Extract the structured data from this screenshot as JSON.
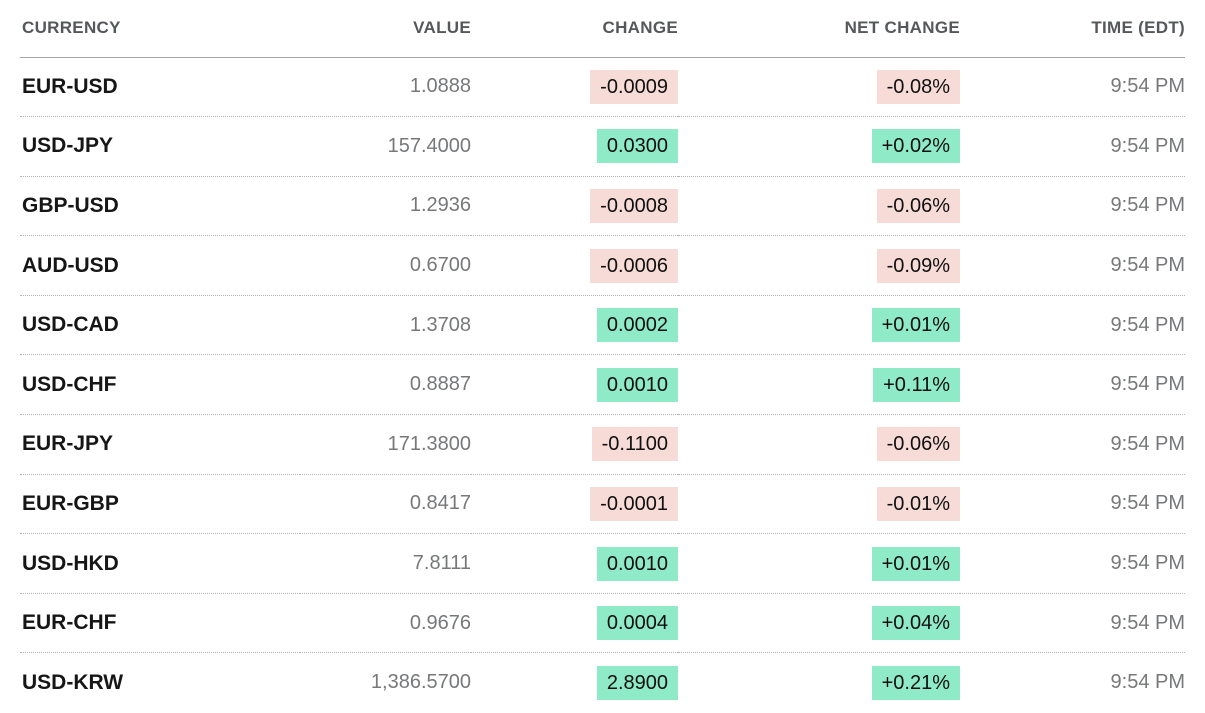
{
  "chart_data": {
    "type": "table",
    "columns": [
      "CURRENCY",
      "VALUE",
      "CHANGE",
      "NET CHANGE",
      "TIME (EDT)"
    ],
    "rows": [
      {
        "pair": "EUR-USD",
        "value": "1.0888",
        "change": "-0.0009",
        "net_change": "-0.08%",
        "direction": "down",
        "time": "9:54 PM"
      },
      {
        "pair": "USD-JPY",
        "value": "157.4000",
        "change": "0.0300",
        "net_change": "+0.02%",
        "direction": "up",
        "time": "9:54 PM"
      },
      {
        "pair": "GBP-USD",
        "value": "1.2936",
        "change": "-0.0008",
        "net_change": "-0.06%",
        "direction": "down",
        "time": "9:54 PM"
      },
      {
        "pair": "AUD-USD",
        "value": "0.6700",
        "change": "-0.0006",
        "net_change": "-0.09%",
        "direction": "down",
        "time": "9:54 PM"
      },
      {
        "pair": "USD-CAD",
        "value": "1.3708",
        "change": "0.0002",
        "net_change": "+0.01%",
        "direction": "up",
        "time": "9:54 PM"
      },
      {
        "pair": "USD-CHF",
        "value": "0.8887",
        "change": "0.0010",
        "net_change": "+0.11%",
        "direction": "up",
        "time": "9:54 PM"
      },
      {
        "pair": "EUR-JPY",
        "value": "171.3800",
        "change": "-0.1100",
        "net_change": "-0.06%",
        "direction": "down",
        "time": "9:54 PM"
      },
      {
        "pair": "EUR-GBP",
        "value": "0.8417",
        "change": "-0.0001",
        "net_change": "-0.01%",
        "direction": "down",
        "time": "9:54 PM"
      },
      {
        "pair": "USD-HKD",
        "value": "7.8111",
        "change": "0.0010",
        "net_change": "+0.01%",
        "direction": "up",
        "time": "9:54 PM"
      },
      {
        "pair": "EUR-CHF",
        "value": "0.9676",
        "change": "0.0004",
        "net_change": "+0.04%",
        "direction": "up",
        "time": "9:54 PM"
      },
      {
        "pair": "USD-KRW",
        "value": "1,386.5700",
        "change": "2.8900",
        "net_change": "+0.21%",
        "direction": "up",
        "time": "9:54 PM"
      }
    ]
  },
  "colors": {
    "positive_bg": "#8feac8",
    "negative_bg": "#f7dbd7",
    "pair_text": "#161616",
    "muted_text": "#76787a",
    "header_text": "#55585a"
  }
}
